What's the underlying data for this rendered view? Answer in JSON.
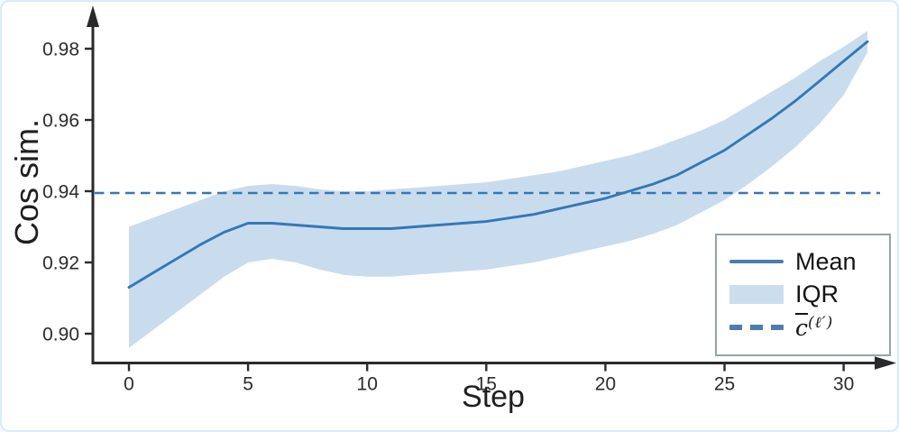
{
  "card": {
    "background": "#ffffff",
    "border_color": "#d9ecf7"
  },
  "chart_data": {
    "type": "line",
    "title": "",
    "xlabel": "Step",
    "ylabel": "Cos sim.",
    "x_ticks": [
      0,
      5,
      10,
      15,
      20,
      25,
      30
    ],
    "y_ticks": [
      0.9,
      0.92,
      0.94,
      0.96,
      0.98
    ],
    "y_tick_labels": [
      "0.90",
      "0.92",
      "0.94",
      "0.96",
      "0.98"
    ],
    "xlim": [
      0,
      31
    ],
    "ylim": [
      0.893,
      0.988
    ],
    "grid": false,
    "legend_position": "lower right",
    "x": [
      0,
      1,
      2,
      3,
      4,
      5,
      6,
      7,
      8,
      9,
      10,
      11,
      12,
      13,
      14,
      15,
      16,
      17,
      18,
      19,
      20,
      21,
      22,
      23,
      24,
      25,
      26,
      27,
      28,
      29,
      30,
      31
    ],
    "series": [
      {
        "name": "Mean",
        "type": "line",
        "color": "#3478b6",
        "values": [
          0.913,
          0.917,
          0.921,
          0.925,
          0.9285,
          0.931,
          0.931,
          0.9305,
          0.93,
          0.9295,
          0.9295,
          0.9295,
          0.93,
          0.9305,
          0.931,
          0.9315,
          0.9325,
          0.9335,
          0.935,
          0.9365,
          0.938,
          0.94,
          0.942,
          0.9445,
          0.948,
          0.9515,
          0.956,
          0.9605,
          0.9655,
          0.971,
          0.9765,
          0.982
        ]
      },
      {
        "name": "IQR",
        "type": "band",
        "color": "#c9dcee",
        "upper": [
          0.93,
          0.9325,
          0.935,
          0.9375,
          0.94,
          0.9415,
          0.942,
          0.9415,
          0.9405,
          0.94,
          0.94,
          0.9405,
          0.941,
          0.9415,
          0.942,
          0.9425,
          0.9435,
          0.9445,
          0.9455,
          0.947,
          0.9485,
          0.95,
          0.952,
          0.9545,
          0.957,
          0.96,
          0.964,
          0.968,
          0.972,
          0.9765,
          0.9805,
          0.985
        ]
      },
      {
        "name": "c̄(ℓ′)",
        "type": "hline",
        "line_style": "dashed",
        "color": "#3478b6",
        "value": 0.9395
      }
    ],
    "band_lower": [
      0.896,
      0.901,
      0.906,
      0.911,
      0.916,
      0.92,
      0.921,
      0.92,
      0.918,
      0.9165,
      0.916,
      0.916,
      0.9165,
      0.917,
      0.9175,
      0.918,
      0.919,
      0.92,
      0.9215,
      0.923,
      0.9245,
      0.926,
      0.928,
      0.9305,
      0.934,
      0.9375,
      0.942,
      0.947,
      0.9525,
      0.959,
      0.967,
      0.979
    ]
  },
  "axes": {
    "line_color": "#2a2a2a",
    "tick_text_color": "#2b2b2b"
  },
  "legend": {
    "mean_label": "Mean",
    "iqr_label": "IQR",
    "cbar_main": "c",
    "cbar_sup": "(ℓ′)",
    "swatch_color": "#4d7cb2",
    "patch_color": "#ccddee"
  }
}
